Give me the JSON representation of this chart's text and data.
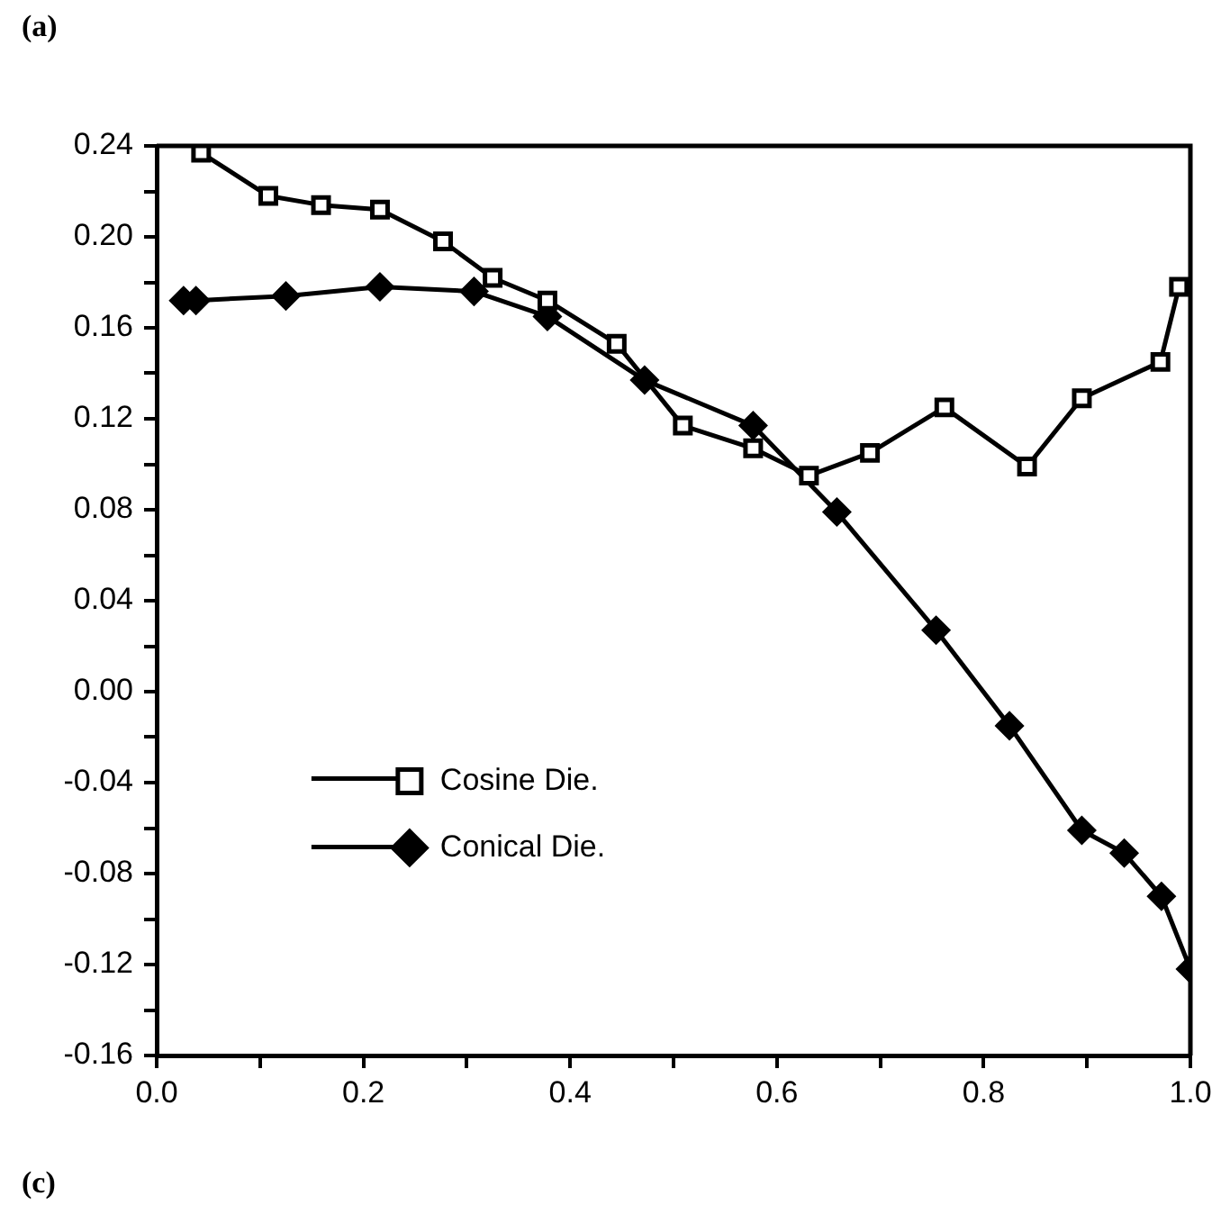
{
  "chart_data": {
    "type": "line",
    "annotations": [
      "(a)",
      "(c)"
    ],
    "series": [
      {
        "name": "Cosine Die.",
        "color": "#000000",
        "marker": "square",
        "x": [
          0.043,
          0.108,
          0.159,
          0.216,
          0.277,
          0.325,
          0.378,
          0.445,
          0.509,
          0.577,
          0.631,
          0.69,
          0.762,
          0.842,
          0.895,
          0.971,
          0.989
        ],
        "values": [
          0.237,
          0.218,
          0.214,
          0.212,
          0.198,
          0.182,
          0.172,
          0.153,
          0.117,
          0.107,
          0.095,
          0.105,
          0.125,
          0.099,
          0.129,
          0.145,
          0.178
        ]
      },
      {
        "name": "Conical Die.",
        "color": "#000000",
        "marker": "diamond",
        "x": [
          0.026,
          0.038,
          0.125,
          0.216,
          0.307,
          0.378,
          0.472,
          0.577,
          0.658,
          0.754,
          0.825,
          0.895,
          0.936,
          0.972,
          1.0
        ],
        "values": [
          0.172,
          0.172,
          0.174,
          0.178,
          0.176,
          0.165,
          0.137,
          0.117,
          0.079,
          0.027,
          -0.015,
          -0.061,
          -0.071,
          -0.09,
          -0.122
        ]
      }
    ],
    "xlim": [
      0,
      1
    ],
    "xticks": [
      {
        "value": 0,
        "label": "0.0"
      },
      {
        "value": 0.1,
        "label": null
      },
      {
        "value": 0.2,
        "label": "0.2"
      },
      {
        "value": 0.3,
        "label": null
      },
      {
        "value": 0.4,
        "label": "0.4"
      },
      {
        "value": 0.5,
        "label": null
      },
      {
        "value": 0.6,
        "label": "0.6"
      },
      {
        "value": 0.7,
        "label": null
      },
      {
        "value": 0.8,
        "label": "0.8"
      },
      {
        "value": 0.9,
        "label": null
      },
      {
        "value": 1,
        "label": "1.0"
      }
    ],
    "ylim": [
      -0.16,
      0.24
    ],
    "yticks": [
      {
        "value": -0.16,
        "label": "-0.16"
      },
      {
        "value": -0.14,
        "label": null
      },
      {
        "value": -0.12,
        "label": "-0.12"
      },
      {
        "value": -0.1,
        "label": null
      },
      {
        "value": -0.08,
        "label": "-0.08"
      },
      {
        "value": -0.06,
        "label": null
      },
      {
        "value": -0.04,
        "label": "-0.04"
      },
      {
        "value": -0.02,
        "label": null
      },
      {
        "value": 0,
        "label": "0.00"
      },
      {
        "value": 0.02,
        "label": null
      },
      {
        "value": 0.04,
        "label": "0.04"
      },
      {
        "value": 0.06,
        "label": null
      },
      {
        "value": 0.08,
        "label": "0.08"
      },
      {
        "value": 0.1,
        "label": null
      },
      {
        "value": 0.12,
        "label": "0.12"
      },
      {
        "value": 0.14,
        "label": null
      },
      {
        "value": 0.16,
        "label": "0.16"
      },
      {
        "value": 0.18,
        "label": null
      },
      {
        "value": 0.2,
        "label": "0.20"
      },
      {
        "value": 0.22,
        "label": null
      },
      {
        "value": 0.24,
        "label": "0.24"
      }
    ],
    "grid": false,
    "legend": "bottom",
    "line_style": "solid"
  }
}
